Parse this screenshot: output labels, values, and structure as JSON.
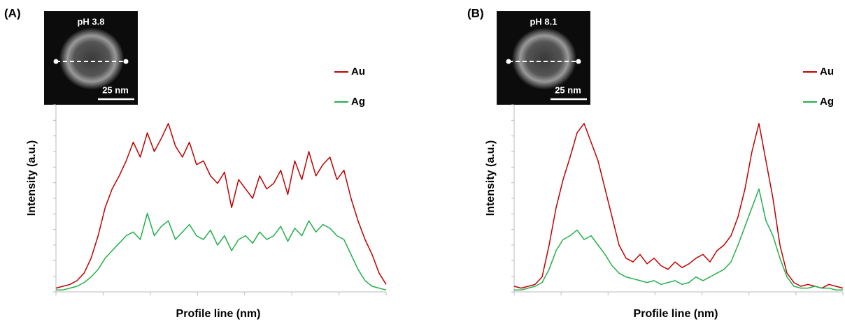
{
  "chart_data": [
    {
      "type": "line",
      "panel_label": "(A)",
      "inset_label": "pH 3.8",
      "scale_bar_label": "25 nm",
      "x_label": "Profile line (nm)",
      "y_label": "Intensity (a.u.)",
      "ylim": [
        0,
        100
      ],
      "series": [
        {
          "name": "Au",
          "color": "#c00000",
          "values": [
            2,
            3,
            4,
            6,
            10,
            18,
            30,
            45,
            55,
            62,
            70,
            80,
            72,
            85,
            75,
            82,
            90,
            78,
            72,
            80,
            68,
            70,
            62,
            58,
            64,
            45,
            60,
            55,
            50,
            62,
            55,
            58,
            65,
            52,
            70,
            60,
            75,
            62,
            68,
            72,
            60,
            65,
            50,
            38,
            28,
            20,
            10,
            4
          ]
        },
        {
          "name": "Ag",
          "color": "#22b04a",
          "values": [
            1,
            1,
            2,
            3,
            5,
            8,
            12,
            18,
            22,
            26,
            30,
            32,
            28,
            42,
            30,
            35,
            38,
            28,
            32,
            36,
            30,
            28,
            33,
            25,
            30,
            22,
            28,
            30,
            26,
            32,
            28,
            30,
            35,
            27,
            34,
            30,
            38,
            32,
            36,
            34,
            30,
            28,
            20,
            12,
            6,
            3,
            2,
            1
          ]
        }
      ]
    },
    {
      "type": "line",
      "panel_label": "(B)",
      "inset_label": "pH 8.1",
      "scale_bar_label": "25 nm",
      "x_label": "Profile line (nm)",
      "y_label": "Intensity (a.u.)",
      "ylim": [
        0,
        100
      ],
      "series": [
        {
          "name": "Au",
          "color": "#c00000",
          "values": [
            3,
            2,
            3,
            4,
            8,
            25,
            45,
            60,
            72,
            85,
            90,
            80,
            70,
            55,
            40,
            25,
            18,
            16,
            20,
            15,
            18,
            14,
            12,
            16,
            13,
            15,
            18,
            20,
            16,
            22,
            25,
            30,
            40,
            55,
            75,
            90,
            70,
            50,
            25,
            10,
            5,
            3,
            4,
            3,
            2,
            4,
            3,
            2
          ]
        },
        {
          "name": "Ag",
          "color": "#22b04a",
          "values": [
            1,
            1,
            2,
            3,
            5,
            12,
            22,
            28,
            30,
            33,
            28,
            30,
            25,
            20,
            14,
            10,
            8,
            7,
            6,
            5,
            6,
            4,
            5,
            6,
            4,
            5,
            8,
            6,
            8,
            10,
            12,
            16,
            25,
            35,
            45,
            55,
            38,
            30,
            18,
            8,
            3,
            2,
            2,
            3,
            2,
            2,
            1,
            1
          ]
        }
      ]
    }
  ]
}
